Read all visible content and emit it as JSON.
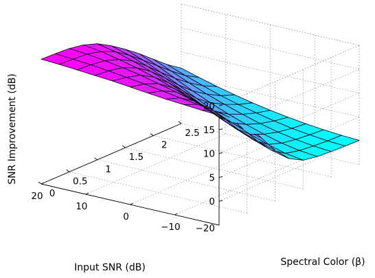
{
  "chart_data": {
    "type": "surface",
    "title": "",
    "xlabel": "Input SNR (dB)",
    "ylabel": "Spectral Color (β)",
    "zlabel": "SNR Improvement (dB)",
    "xlim": [
      -20,
      20
    ],
    "ylim": [
      0,
      2.5
    ],
    "zlim": [
      -5,
      20
    ],
    "xticks": [
      -10,
      0,
      10,
      20
    ],
    "xtick_labels": [
      "−10",
      "0",
      "10",
      "20"
    ],
    "yticks": [
      0,
      0.5,
      1,
      1.5,
      2,
      2.5
    ],
    "ytick_labels": [
      "0",
      "0.5",
      "1",
      "1.5",
      "2",
      "2.5"
    ],
    "zticks": [
      0,
      5,
      10,
      15,
      20
    ],
    "ztick_labels": [
      "0",
      "5",
      "10",
      "15",
      "20"
    ],
    "x_extra_label": "−20",
    "grid": true,
    "colormap": "cool",
    "colormap_colors": [
      "#00ffff",
      "#ff00ff"
    ],
    "x": [
      -20,
      -16,
      -12,
      -8,
      -4,
      0,
      4,
      8,
      12,
      16,
      20
    ],
    "y": [
      0,
      0.25,
      0.5,
      0.75,
      1.0,
      1.25,
      1.5,
      1.75,
      2.0,
      2.25,
      2.5
    ],
    "z": [
      [
        18.0,
        18.2,
        18.5,
        18.8,
        19.2,
        19.6,
        20.0,
        20.3,
        20.6,
        20.9,
        21.1
      ],
      [
        16.5,
        16.9,
        17.3,
        17.8,
        18.4,
        19.0,
        19.5,
        20.0,
        20.4,
        20.7,
        21.0
      ],
      [
        13.5,
        14.2,
        15.0,
        15.9,
        16.9,
        17.8,
        18.7,
        19.4,
        20.0,
        20.5,
        20.8
      ],
      [
        9.5,
        10.5,
        11.6,
        12.9,
        14.3,
        15.7,
        17.0,
        18.1,
        19.0,
        19.8,
        20.3
      ],
      [
        5.6,
        6.7,
        8.0,
        9.5,
        11.2,
        12.9,
        14.6,
        16.1,
        17.4,
        18.5,
        19.3
      ],
      [
        2.6,
        3.5,
        4.8,
        6.3,
        8.0,
        9.8,
        11.7,
        13.5,
        15.1,
        16.5,
        17.6
      ],
      [
        1.0,
        1.6,
        2.6,
        3.9,
        5.4,
        7.0,
        8.8,
        10.7,
        12.5,
        14.2,
        15.6
      ],
      [
        0.5,
        0.9,
        1.6,
        2.6,
        3.8,
        5.1,
        6.6,
        8.2,
        10.0,
        11.8,
        13.4
      ],
      [
        0.3,
        0.6,
        1.1,
        1.8,
        2.7,
        3.8,
        5.0,
        6.3,
        7.8,
        9.4,
        11.0
      ],
      [
        0.2,
        0.4,
        0.8,
        1.3,
        2.0,
        2.8,
        3.7,
        4.7,
        5.9,
        7.2,
        8.6
      ],
      [
        0.1,
        0.3,
        0.6,
        1.0,
        1.5,
        2.1,
        2.8,
        3.6,
        4.5,
        5.5,
        6.6
      ]
    ]
  }
}
